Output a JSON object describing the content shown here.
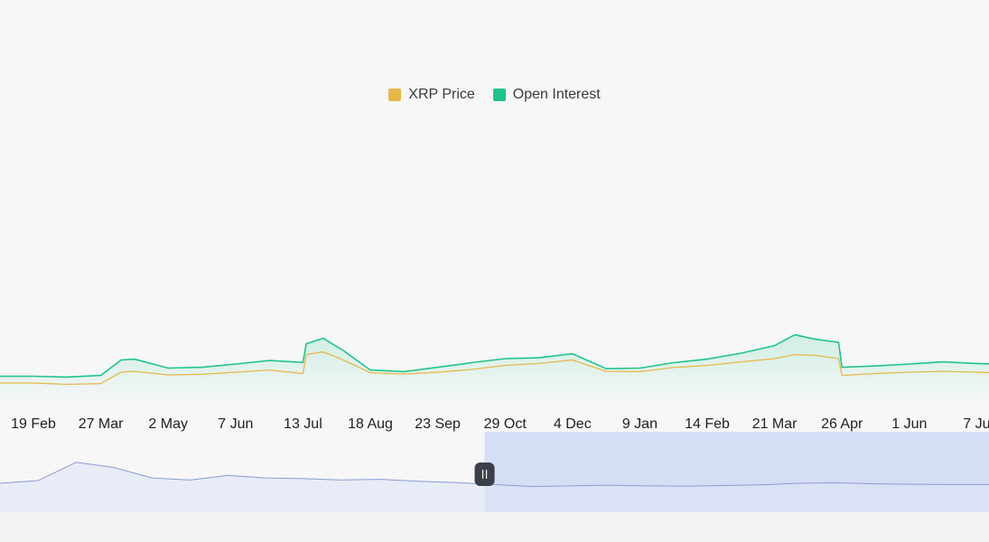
{
  "legend": {
    "price_label": "XRP Price",
    "oi_label": "Open Interest"
  },
  "colors": {
    "price": "#e6b84a",
    "open_interest": "#20c48a",
    "navigator_line": "#8a9bd6",
    "navigator_fill": "#dde4f7",
    "selection": "#d6def6",
    "handle": "#3b3f4a"
  },
  "chart_data": {
    "type": "line",
    "title": "",
    "xlabel": "",
    "ylabel": "",
    "categories": [
      "19 Feb",
      "27 Mar",
      "2 May",
      "7 Jun",
      "13 Jul",
      "18 Aug",
      "23 Sep",
      "29 Oct",
      "4 Dec",
      "9 Jan",
      "14 Feb",
      "21 Mar",
      "26 Apr",
      "1 Jun",
      "7 Ju"
    ],
    "ylim": [
      0,
      100
    ],
    "series": [
      {
        "name": "XRP Price",
        "x": [
          0,
          0.5,
          1,
          1.3,
          1.5,
          2,
          2.5,
          3,
          3.5,
          4,
          4.05,
          4.3,
          4.6,
          5,
          5.5,
          6,
          6.5,
          7,
          7.5,
          8,
          8.5,
          9,
          9.5,
          10,
          10.5,
          11,
          11.3,
          11.6,
          11.95,
          12,
          12.5,
          13,
          13.5,
          14,
          14.5,
          14.9
        ],
        "values": [
          7,
          6.5,
          6.8,
          11,
          11.3,
          10,
          10.2,
          11,
          11.8,
          10.5,
          17.5,
          18.5,
          15.5,
          10.8,
          10.3,
          11,
          12,
          13.5,
          14.2,
          15.5,
          11.3,
          11.2,
          12.7,
          13.5,
          14.8,
          16,
          17.5,
          17.2,
          16,
          9.8,
          10.5,
          11,
          11.3,
          11,
          10.6,
          9.6
        ]
      },
      {
        "name": "Open Interest",
        "x": [
          0,
          0.5,
          1,
          1.3,
          1.5,
          2,
          2.5,
          3,
          3.5,
          4,
          4.05,
          4.3,
          4.6,
          5,
          5.5,
          6,
          6.5,
          7,
          7.5,
          8,
          8.5,
          9,
          9.5,
          10,
          10.5,
          11,
          11.3,
          11.6,
          11.95,
          12,
          12.5,
          13,
          13.5,
          14,
          14.5,
          14.9
        ],
        "values": [
          9.5,
          9.2,
          9.8,
          15.5,
          15.8,
          12.5,
          12.8,
          14,
          15.3,
          14.6,
          21.5,
          23.5,
          19,
          11.8,
          11.2,
          12.8,
          14.5,
          16,
          16.3,
          17.8,
          12.3,
          12.5,
          14.5,
          15.8,
          18,
          20.8,
          24.8,
          23.2,
          22,
          12.8,
          13.3,
          14,
          14.8,
          14.2,
          13.8,
          11.8
        ]
      }
    ],
    "navigator": {
      "values": [
        9,
        11,
        25,
        21,
        13,
        11.5,
        15,
        13,
        12.5,
        11.5,
        12,
        10.5,
        9.5,
        8,
        6.5,
        7,
        7.5,
        7,
        6.8,
        7.2,
        7.8,
        9,
        9.3,
        8.5,
        8.2,
        8,
        8
      ],
      "selection_start": 0.49
    }
  }
}
